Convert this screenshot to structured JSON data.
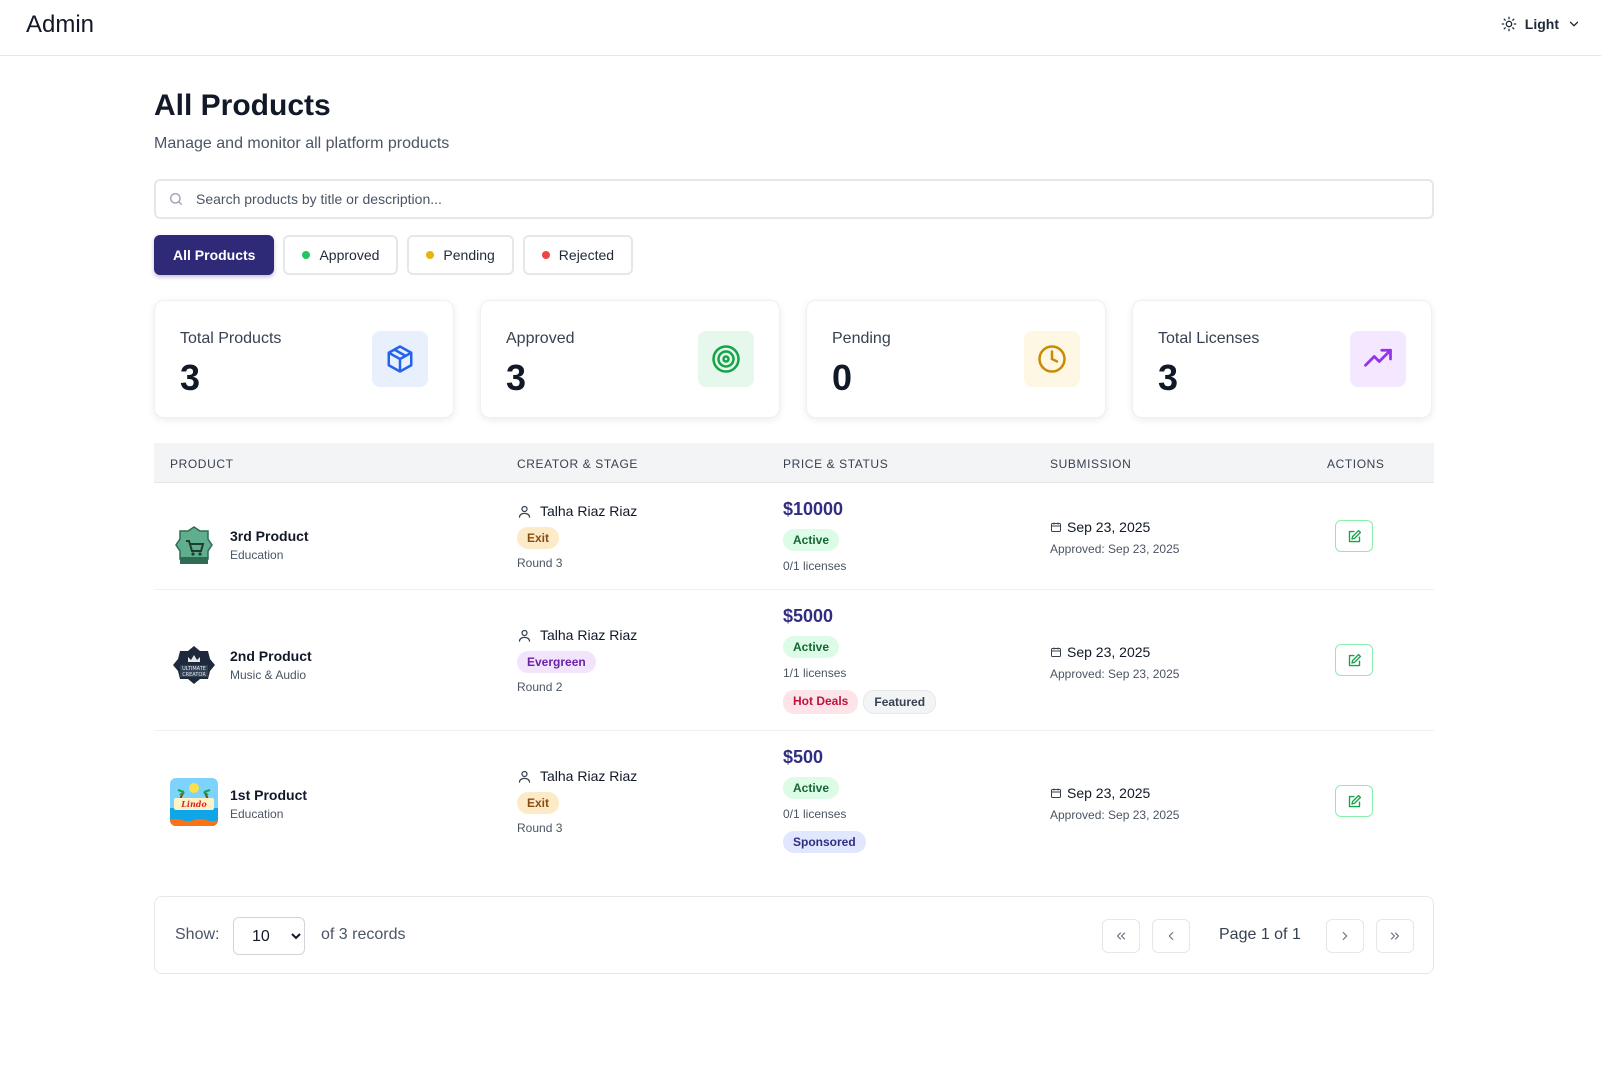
{
  "header": {
    "brand": "Admin",
    "theme_label": "Light"
  },
  "page": {
    "title": "All Products",
    "subtitle": "Manage and monitor all platform products"
  },
  "search": {
    "placeholder": "Search products by title or description...",
    "value": ""
  },
  "filters": [
    {
      "label": "All Products",
      "active": true
    },
    {
      "label": "Approved",
      "dot_color": "#22c55e"
    },
    {
      "label": "Pending",
      "dot_color": "#eab308"
    },
    {
      "label": "Rejected",
      "dot_color": "#ef4444"
    }
  ],
  "stats": [
    {
      "label": "Total Products",
      "value": "3",
      "icon": "cube-icon",
      "icon_bg": "#e8f0fe",
      "icon_color": "#2563eb"
    },
    {
      "label": "Approved",
      "value": "3",
      "icon": "target-icon",
      "icon_bg": "#e6f7ec",
      "icon_color": "#16a34a"
    },
    {
      "label": "Pending",
      "value": "0",
      "icon": "clock-icon",
      "icon_bg": "#fef7e4",
      "icon_color": "#ca8a04"
    },
    {
      "label": "Total Licenses",
      "value": "3",
      "icon": "trending-up-icon",
      "icon_bg": "#f3e8ff",
      "icon_color": "#9333ea"
    }
  ],
  "table": {
    "columns": [
      "PRODUCT",
      "CREATOR & STAGE",
      "PRICE & STATUS",
      "SUBMISSION",
      "ACTIONS"
    ],
    "rows": [
      {
        "name": "3rd Product",
        "category": "Education",
        "creator": "Talha Riaz Riaz",
        "stage": "Exit",
        "round": "Round 3",
        "price": "$10000",
        "status": "Active",
        "licenses": "0/1 licenses",
        "tags": [],
        "submitted": "Sep 23, 2025",
        "approved": "Approved: Sep 23, 2025"
      },
      {
        "name": "2nd Product",
        "category": "Music & Audio",
        "creator": "Talha Riaz Riaz",
        "stage": "Evergreen",
        "round": "Round 2",
        "price": "$5000",
        "status": "Active",
        "licenses": "1/1 licenses",
        "tags": [
          "Hot Deals",
          "Featured"
        ],
        "submitted": "Sep 23, 2025",
        "approved": "Approved: Sep 23, 2025"
      },
      {
        "name": "1st Product",
        "category": "Education",
        "creator": "Talha Riaz Riaz",
        "stage": "Exit",
        "round": "Round 3",
        "price": "$500",
        "status": "Active",
        "licenses": "0/1 licenses",
        "tags": [
          "Sponsored"
        ],
        "submitted": "Sep 23, 2025",
        "approved": "Approved: Sep 23, 2025"
      }
    ]
  },
  "pagination": {
    "show_label": "Show:",
    "page_size": "10",
    "records": "of 3 records",
    "page_info": "Page 1 of 1"
  }
}
